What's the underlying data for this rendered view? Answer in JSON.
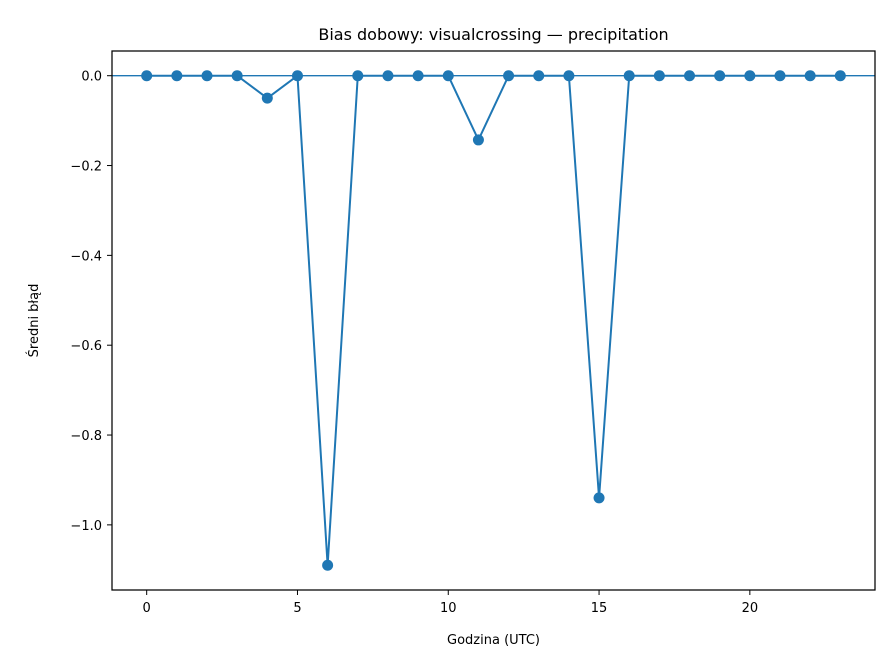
{
  "chart_data": {
    "type": "line",
    "title": "Bias dobowy: visualcrossing — precipitation",
    "xlabel": "Godzina (UTC)",
    "ylabel": "Średni błąd",
    "xlim": [
      -1.15,
      24.15
    ],
    "ylim": [
      -1.145,
      0.055
    ],
    "xticks": [
      0,
      5,
      10,
      15,
      20
    ],
    "xtick_labels": [
      "0",
      "5",
      "10",
      "15",
      "20"
    ],
    "yticks": [
      0.0,
      -0.2,
      -0.4,
      -0.6,
      -0.8,
      -1.0
    ],
    "ytick_labels": [
      "0.0",
      "−0.2",
      "−0.4",
      "−0.6",
      "−0.8",
      "−1.0"
    ],
    "grid": false,
    "reference_line": 0,
    "color": "#1f77b4",
    "series": [
      {
        "x": [
          0,
          1,
          2,
          3,
          4,
          5,
          6,
          7,
          8,
          9,
          10,
          11,
          12,
          13,
          14,
          15,
          16,
          17,
          18,
          19,
          20,
          21,
          22,
          23
        ],
        "values": [
          0,
          0,
          0,
          0,
          -0.05,
          0,
          -1.09,
          0,
          0,
          0,
          0,
          -0.143,
          0,
          0,
          0,
          -0.94,
          0,
          0,
          0,
          0,
          0,
          0,
          0,
          0
        ]
      }
    ]
  }
}
